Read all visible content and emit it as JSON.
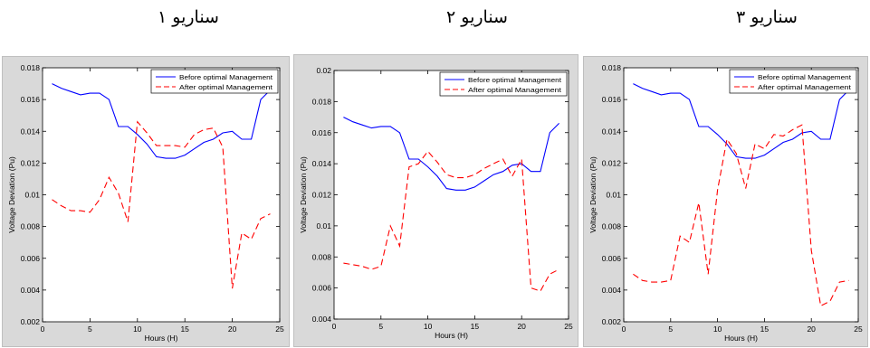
{
  "panels": [
    {
      "title": "سناریو ۱"
    },
    {
      "title": "سناریو ۲"
    },
    {
      "title": "سناریو ۳"
    }
  ],
  "colors": {
    "before": "#0000ff",
    "after": "#ff0000",
    "panel_bg": "#d9d9d9",
    "plot_bg": "#ffffff"
  },
  "chart_data": [
    {
      "type": "line",
      "title": "",
      "xlabel": "Hours (H)",
      "ylabel": "Voltage Deviation (Pu)",
      "xlim": [
        0,
        25
      ],
      "ylim": [
        0.002,
        0.018
      ],
      "xticks": [
        "0",
        "5",
        "10",
        "15",
        "20",
        "25"
      ],
      "yticks": [
        "0.002",
        "0.004",
        "0.006",
        "0.008",
        "0.01",
        "0.012",
        "0.014",
        "0.016",
        "0.018"
      ],
      "legend_position": "top-right",
      "grid": false,
      "x": [
        1,
        2,
        3,
        4,
        5,
        6,
        7,
        8,
        9,
        10,
        11,
        12,
        13,
        14,
        15,
        16,
        17,
        18,
        19,
        20,
        21,
        22,
        23,
        24
      ],
      "series": [
        {
          "name": "Before optimal Management",
          "style": "solid",
          "values": [
            0.017,
            0.0167,
            0.0165,
            0.0163,
            0.0164,
            0.0164,
            0.016,
            0.0143,
            0.0143,
            0.0138,
            0.0132,
            0.0124,
            0.0123,
            0.0123,
            0.0125,
            0.0129,
            0.0133,
            0.0135,
            0.0139,
            0.014,
            0.0135,
            0.0135,
            0.016,
            0.0166
          ]
        },
        {
          "name": "After optimal Management",
          "style": "dashed",
          "values": [
            0.0097,
            0.0093,
            0.009,
            0.009,
            0.0089,
            0.0097,
            0.0111,
            0.0101,
            0.0083,
            0.0146,
            0.0139,
            0.0131,
            0.0131,
            0.0131,
            0.013,
            0.0138,
            0.0141,
            0.0142,
            0.013,
            0.0041,
            0.0076,
            0.0072,
            0.0085,
            0.0088
          ]
        }
      ]
    },
    {
      "type": "line",
      "title": "",
      "xlabel": "Hours (H)",
      "ylabel": "Voltage Deviation (Pu)",
      "xlim": [
        0,
        25
      ],
      "ylim": [
        0.004,
        0.02
      ],
      "xticks": [
        "0",
        "5",
        "10",
        "15",
        "20",
        "25"
      ],
      "yticks": [
        "0.004",
        "0.006",
        "0.008",
        "0.01",
        "0.012",
        "0.014",
        "0.016",
        "0.018",
        "0.02"
      ],
      "legend_position": "top-right",
      "grid": false,
      "x": [
        1,
        2,
        3,
        4,
        5,
        6,
        7,
        8,
        9,
        10,
        11,
        12,
        13,
        14,
        15,
        16,
        17,
        18,
        19,
        20,
        21,
        22,
        23,
        24
      ],
      "series": [
        {
          "name": "Before optimal Management",
          "style": "solid",
          "values": [
            0.017,
            0.0167,
            0.0165,
            0.0163,
            0.0164,
            0.0164,
            0.016,
            0.0143,
            0.0143,
            0.0138,
            0.0132,
            0.0124,
            0.0123,
            0.0123,
            0.0125,
            0.0129,
            0.0133,
            0.0135,
            0.0139,
            0.014,
            0.0135,
            0.0135,
            0.016,
            0.0166
          ]
        },
        {
          "name": "After optimal Management",
          "style": "dashed",
          "values": [
            0.0076,
            0.0075,
            0.0074,
            0.0072,
            0.0074,
            0.01,
            0.0087,
            0.0138,
            0.014,
            0.0148,
            0.0141,
            0.0133,
            0.0131,
            0.0131,
            0.0133,
            0.0137,
            0.014,
            0.0143,
            0.0132,
            0.0143,
            0.006,
            0.0058,
            0.0069,
            0.0072
          ]
        }
      ]
    },
    {
      "type": "line",
      "title": "",
      "xlabel": "Hours (H)",
      "ylabel": "Voltage Deviation (Pu)",
      "xlim": [
        0,
        25
      ],
      "ylim": [
        0.002,
        0.018
      ],
      "xticks": [
        "0",
        "5",
        "10",
        "15",
        "20",
        "25"
      ],
      "yticks": [
        "0.002",
        "0.004",
        "0.006",
        "0.008",
        "0.01",
        "0.012",
        "0.014",
        "0.016",
        "0.018"
      ],
      "legend_position": "top-right",
      "grid": false,
      "x": [
        1,
        2,
        3,
        4,
        5,
        6,
        7,
        8,
        9,
        10,
        11,
        12,
        13,
        14,
        15,
        16,
        17,
        18,
        19,
        20,
        21,
        22,
        23,
        24
      ],
      "series": [
        {
          "name": "Before optimal Management",
          "style": "solid",
          "values": [
            0.017,
            0.0167,
            0.0165,
            0.0163,
            0.0164,
            0.0164,
            0.016,
            0.0143,
            0.0143,
            0.0138,
            0.0132,
            0.0124,
            0.0123,
            0.0123,
            0.0125,
            0.0129,
            0.0133,
            0.0135,
            0.0139,
            0.014,
            0.0135,
            0.0135,
            0.016,
            0.0166
          ]
        },
        {
          "name": "After optimal Management",
          "style": "dashed",
          "values": [
            0.005,
            0.0046,
            0.0045,
            0.0045,
            0.0046,
            0.0074,
            0.007,
            0.0095,
            0.005,
            0.0103,
            0.0135,
            0.0126,
            0.0104,
            0.0132,
            0.0129,
            0.0138,
            0.0137,
            0.0141,
            0.0144,
            0.0065,
            0.003,
            0.0033,
            0.0045,
            0.0046
          ]
        }
      ]
    }
  ]
}
